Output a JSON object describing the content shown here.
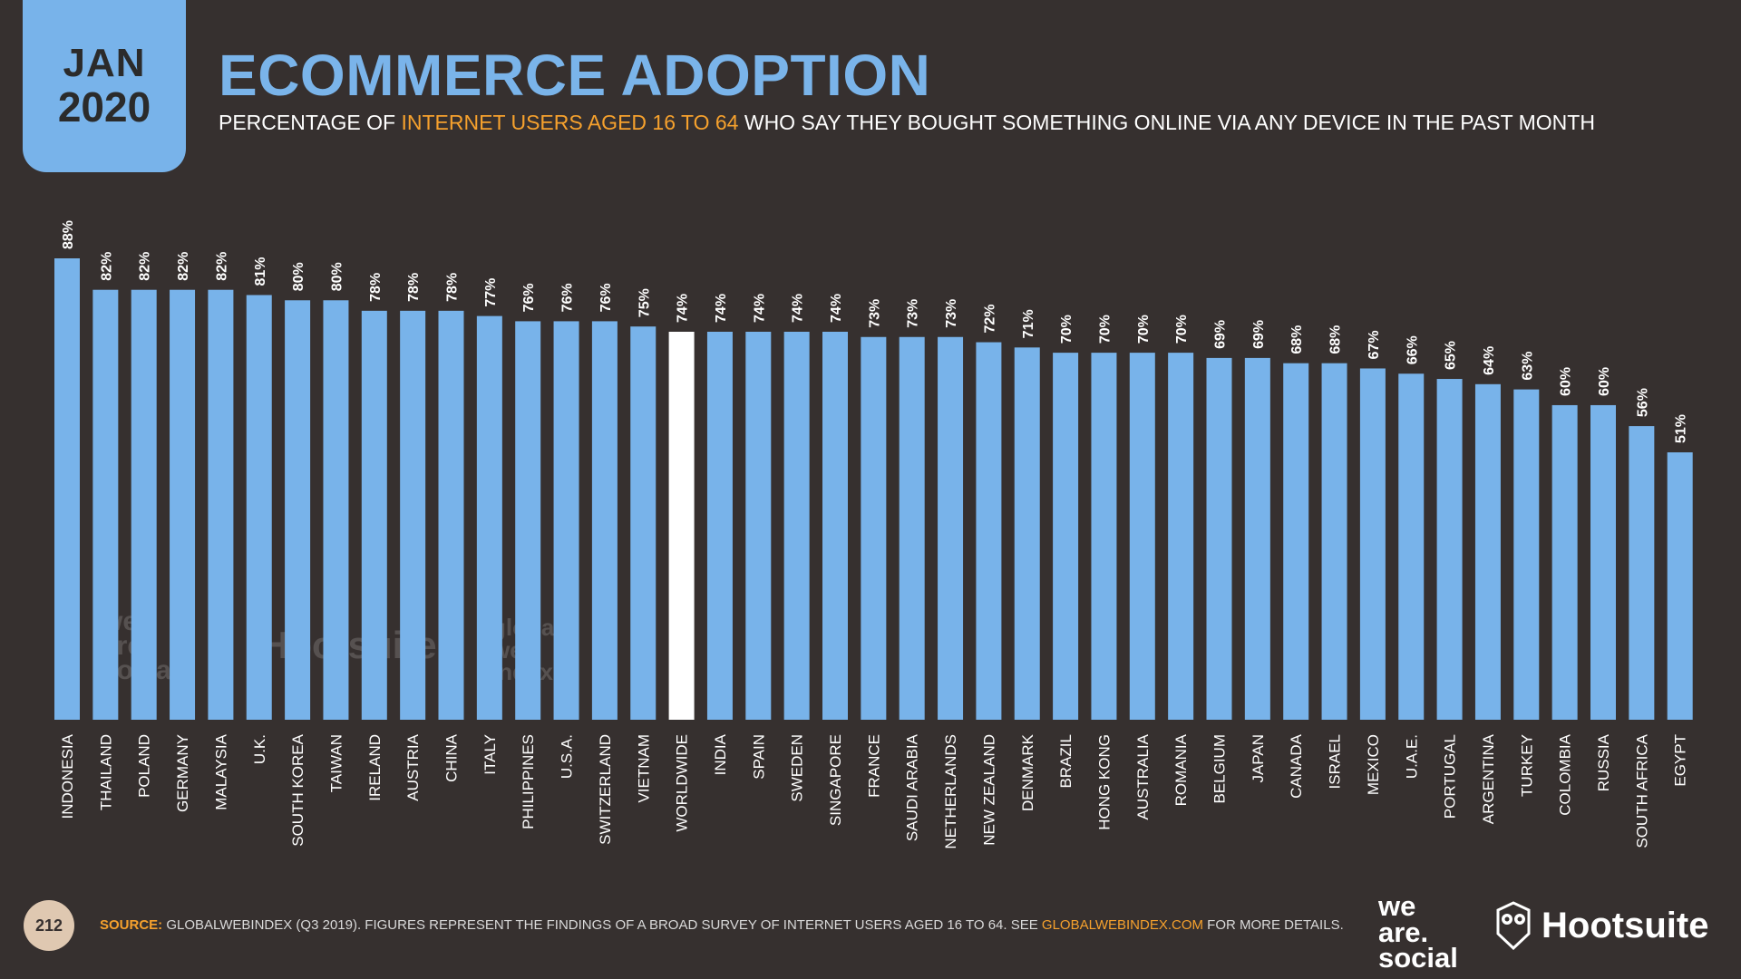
{
  "header": {
    "month": "JAN",
    "year": "2020",
    "title": "ECOMMERCE ADOPTION",
    "subtitle_pre": "PERCENTAGE OF ",
    "subtitle_highlight": "INTERNET USERS AGED 16 TO 64",
    "subtitle_post": " WHO SAY THEY BOUGHT SOMETHING ONLINE VIA ANY DEVICE IN THE PAST MONTH"
  },
  "footer": {
    "page_number": "212",
    "source_label": "SOURCE:",
    "source_text": " GLOBALWEBINDEX (Q3 2019). FIGURES REPRESENT THE FINDINGS OF A BROAD SURVEY OF INTERNET USERS AGED 16 TO 64. SEE ",
    "source_link": "GLOBALWEBINDEX.COM",
    "source_tail": " FOR MORE DETAILS."
  },
  "logos": {
    "we_are_social": [
      "we",
      "are.",
      "social"
    ],
    "hootsuite": "Hootsuite",
    "watermark_gwi": [
      "global",
      "web",
      "index"
    ]
  },
  "colors": {
    "background": "#36302f",
    "bar": "#78b3ea",
    "highlight_bar": "#ffffff",
    "accent": "#f6a12d",
    "title": "#7ab4ea"
  },
  "chart_data": {
    "type": "bar",
    "highlight": "WORLDWIDE",
    "unit": "%",
    "ylim": [
      0,
      100
    ],
    "grid": false,
    "categories": [
      "INDONESIA",
      "THAILAND",
      "POLAND",
      "GERMANY",
      "MALAYSIA",
      "U.K.",
      "SOUTH KOREA",
      "TAIWAN",
      "IRELAND",
      "AUSTRIA",
      "CHINA",
      "ITALY",
      "PHILIPPINES",
      "U.S.A.",
      "SWITZERLAND",
      "VIETNAM",
      "WORLDWIDE",
      "INDIA",
      "SPAIN",
      "SWEDEN",
      "SINGAPORE",
      "FRANCE",
      "SAUDI ARABIA",
      "NETHERLANDS",
      "NEW ZEALAND",
      "DENMARK",
      "BRAZIL",
      "HONG KONG",
      "AUSTRALIA",
      "ROMANIA",
      "BELGIUM",
      "JAPAN",
      "CANADA",
      "ISRAEL",
      "MEXICO",
      "U.A.E.",
      "PORTUGAL",
      "ARGENTINA",
      "TURKEY",
      "COLOMBIA",
      "RUSSIA",
      "SOUTH AFRICA",
      "EGYPT"
    ],
    "values": [
      88,
      82,
      82,
      82,
      82,
      81,
      80,
      80,
      78,
      78,
      78,
      77,
      76,
      76,
      76,
      75,
      74,
      74,
      74,
      74,
      74,
      73,
      73,
      73,
      72,
      71,
      70,
      70,
      70,
      70,
      69,
      69,
      68,
      68,
      67,
      66,
      65,
      64,
      63,
      60,
      60,
      56,
      51
    ]
  }
}
